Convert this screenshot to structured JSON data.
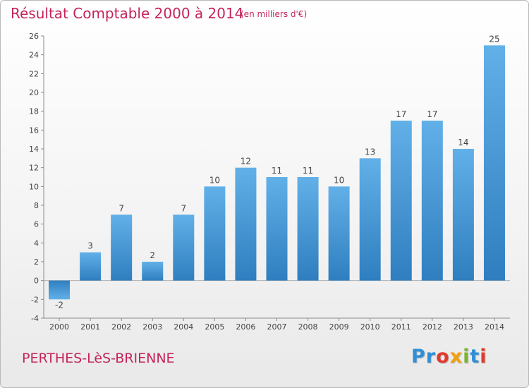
{
  "header": {
    "title": "Résultat Comptable 2000 à 2014",
    "subtitle": "(en milliers d'€)"
  },
  "footer": {
    "commune": "PERTHES-LèS-BRIENNE",
    "logo_letters": [
      {
        "ch": "P",
        "color": "#2f8fd6"
      },
      {
        "ch": "r",
        "color": "#2f8fd6"
      },
      {
        "ch": "o",
        "color": "#e2392b"
      },
      {
        "ch": "x",
        "color": "#f0a10e"
      },
      {
        "ch": "i",
        "color": "#79b52f"
      },
      {
        "ch": "t",
        "color": "#2f8fd6"
      },
      {
        "ch": "i",
        "color": "#e2392b"
      }
    ]
  },
  "colors": {
    "bar_top": "#62b0e8",
    "bar_bottom": "#2f7ebf",
    "text": "#444444",
    "accent": "#c4245a"
  },
  "chart_data": {
    "type": "bar",
    "categories": [
      "2000",
      "2001",
      "2002",
      "2003",
      "2004",
      "2005",
      "2006",
      "2007",
      "2008",
      "2009",
      "2010",
      "2011",
      "2012",
      "2013",
      "2014"
    ],
    "values": [
      -2,
      3,
      7,
      2,
      7,
      10,
      12,
      11,
      11,
      10,
      13,
      17,
      17,
      14,
      25
    ],
    "ylim": [
      -4,
      26
    ],
    "yticks": [
      -4,
      -2,
      0,
      2,
      4,
      6,
      8,
      10,
      12,
      14,
      16,
      18,
      20,
      22,
      24,
      26
    ],
    "grid": false,
    "title": "Résultat Comptable 2000 à 2014",
    "xlabel": "",
    "ylabel": ""
  }
}
